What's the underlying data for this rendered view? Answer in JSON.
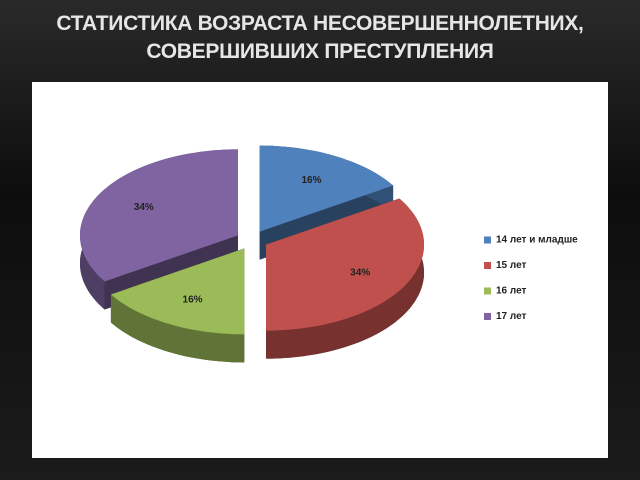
{
  "chart_data": {
    "type": "pie3d",
    "title": "СТАТИСТИКА ВОЗРАСТА НЕСОВЕРШЕННОЛЕТНИХ, СОВЕРШИВШИХ ПРЕСТУПЛЕНИЯ",
    "categories": [
      "14 лет и младше",
      "15 лет",
      "16 лет",
      "17 лет"
    ],
    "values": [
      16,
      34,
      16,
      34
    ],
    "value_labels": [
      "16%",
      "34%",
      "16%",
      "34%"
    ],
    "colors": [
      "#4f81bd",
      "#c0504d",
      "#9bbb59",
      "#8064a2"
    ],
    "legend": "right"
  }
}
